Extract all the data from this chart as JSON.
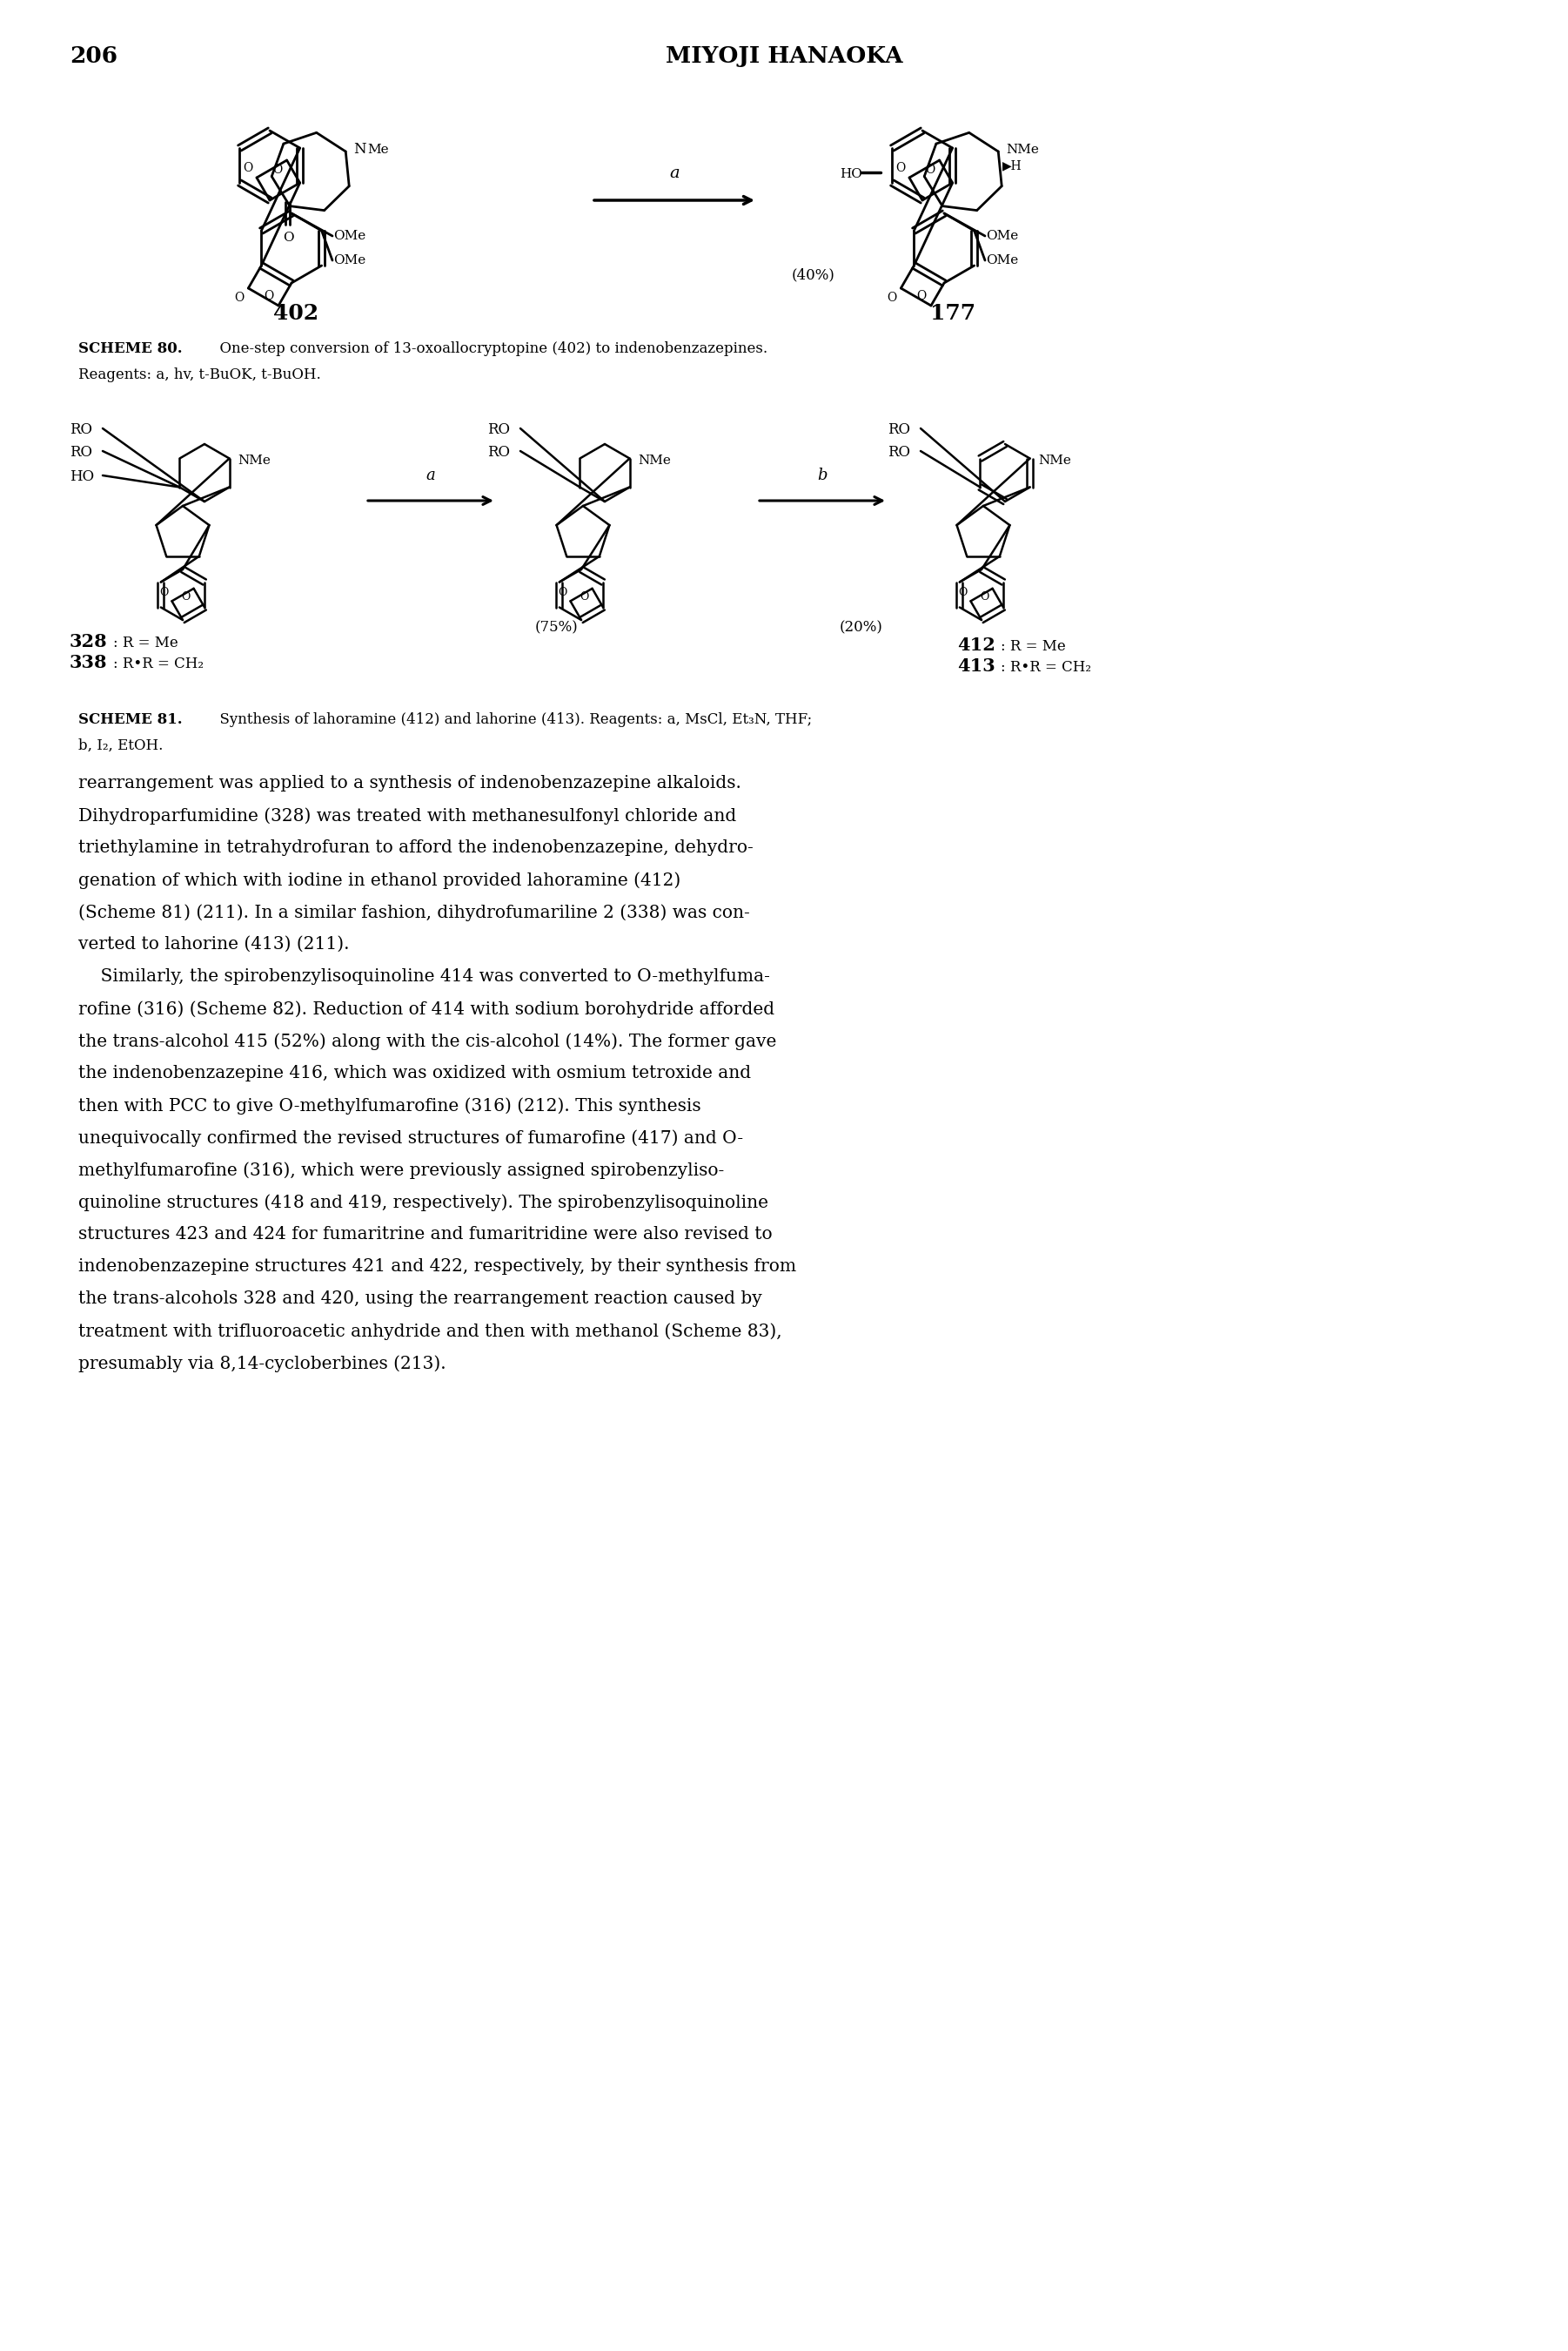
{
  "page_number": "206",
  "header": "MIYOJI HANAOKA",
  "background": "#ffffff",
  "scheme80_label": "SCHEME 80.",
  "scheme80_text1": "  One-step conversion of 13-oxoallocryptopine (402) to indenobenzazepines.",
  "scheme80_text2": "Reagents: a, hv, t-BuOK, t-BuOH.",
  "scheme81_label": "SCHEME 81.",
  "scheme81_text1": "  Synthesis of lahoramine (412) and lahorine (413). Reagents: a, MsCl, Et₃N, THF;",
  "scheme81_text2": "b, I₂, EtOH.",
  "body_text_lines": [
    "rearrangement was applied to a synthesis of indenobenzazepine alkaloids.",
    "Dihydroparfumidine (328) was treated with methanesulfonyl chloride and",
    "triethylamine in tetrahydrofuran to afford the indenobenzazepine, dehydro-",
    "genation of which with iodine in ethanol provided lahoramine (412)",
    "(Scheme 81) (211). In a similar fashion, dihydrofumariline 2 (338) was con-",
    "verted to lahorine (413) (211).",
    "    Similarly, the spirobenzylisoquinoline 414 was converted to O-methylfuma-",
    "rofine (316) (Scheme 82). Reduction of 414 with sodium borohydride afforded",
    "the trans-alcohol 415 (52%) along with the cis-alcohol (14%). The former gave",
    "the indenobenzazepine 416, which was oxidized with osmium tetroxide and",
    "then with PCC to give O-methylfumarofine (316) (212). This synthesis",
    "unequivocally confirmed the revised structures of fumarofine (417) and O-",
    "methylfumarofine (316), which were previously assigned spirobenzyliso-",
    "quinoline structures (418 and 419, respectively). The spirobenzylisoquinoline",
    "structures 423 and 424 for fumaritrine and fumaritridine were also revised to",
    "indenobenzazepine structures 421 and 422, respectively, by their synthesis from",
    "the trans-alcohols 328 and 420, using the rearrangement reaction caused by",
    "treatment with trifluoroacetic anhydride and then with methanol (Scheme 83),",
    "presumably via 8,14-cycloberbines (213)."
  ]
}
